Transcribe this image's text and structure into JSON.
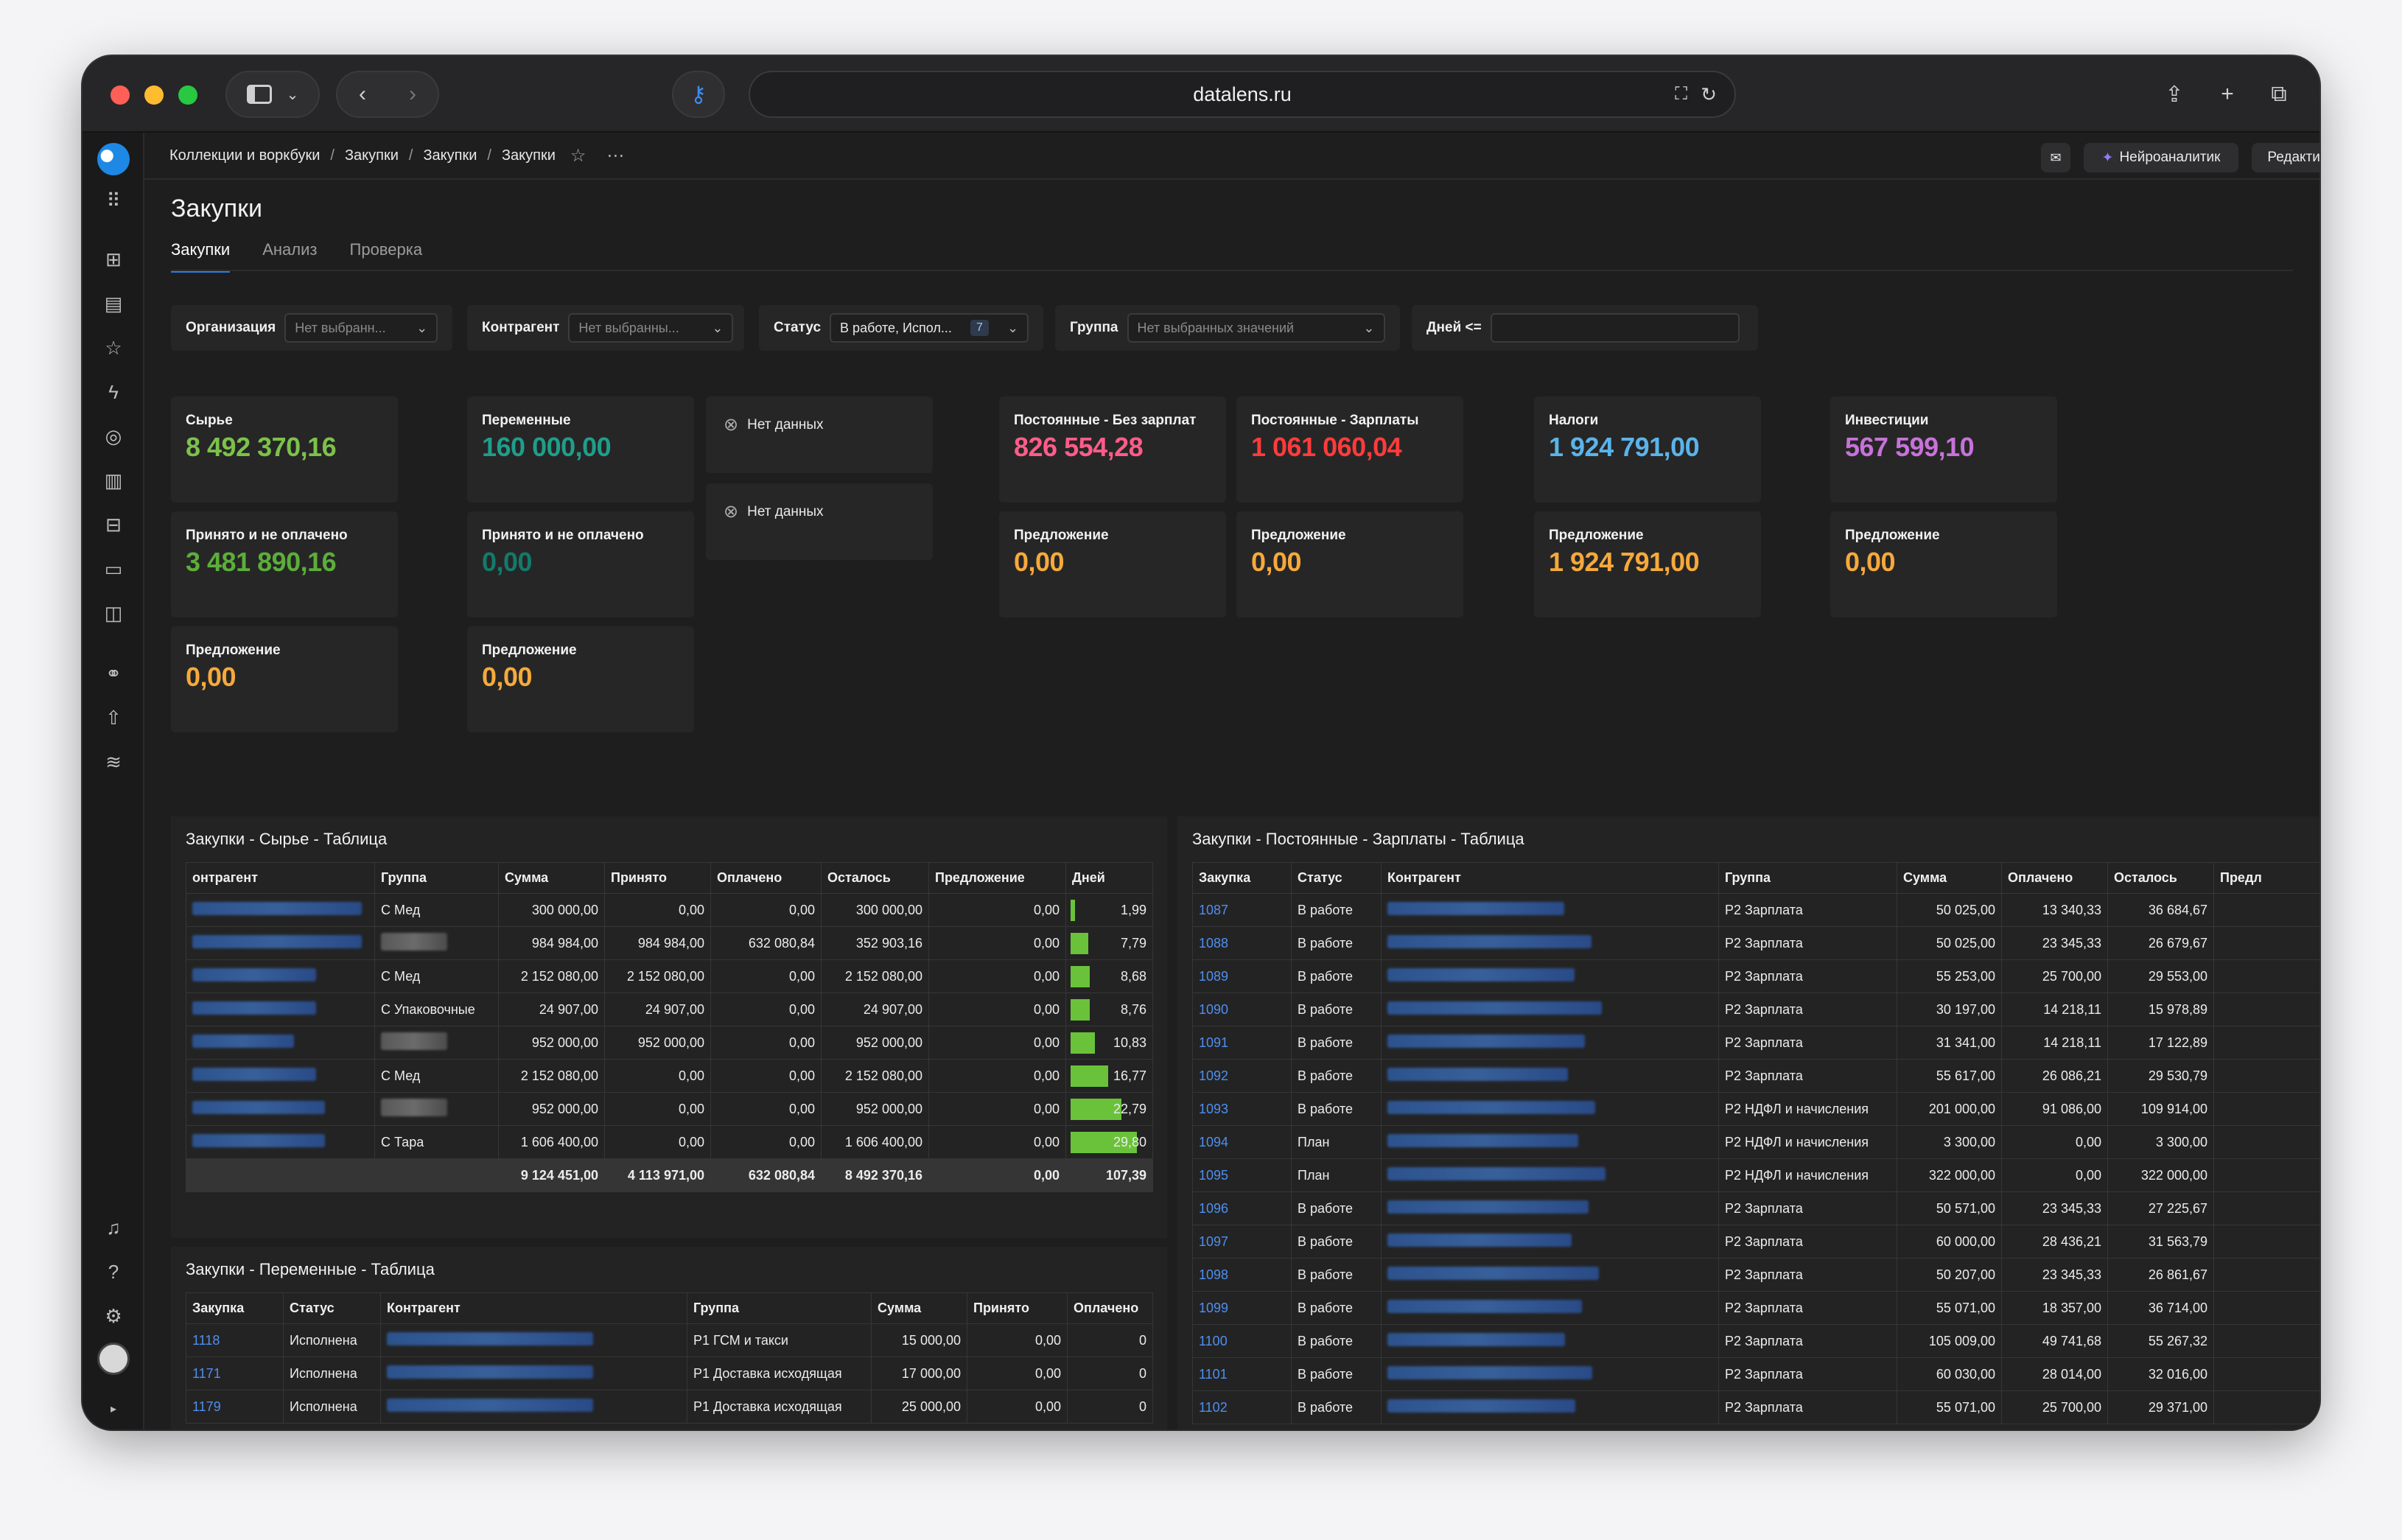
{
  "browser": {
    "url": "datalens.ru"
  },
  "breadcrumbs": [
    "Коллекции и воркбуки",
    "Закупки",
    "Закупки",
    "Закупки"
  ],
  "header_buttons": {
    "neuro": "Нейроаналитик",
    "edit": "Редактировать"
  },
  "page": {
    "title": "Закупки",
    "tabs": [
      "Закупки",
      "Анализ",
      "Проверка"
    ]
  },
  "filters": {
    "org": {
      "label": "Организация",
      "value": "Нет выбранн..."
    },
    "contractor": {
      "label": "Контрагент",
      "value": "Нет выбранны..."
    },
    "status": {
      "label": "Статус",
      "value": "В работе, Испол...",
      "count": "7"
    },
    "group": {
      "label": "Группа",
      "value": "Нет выбранных значений"
    },
    "days": {
      "label": "Дней <=",
      "value": ""
    }
  },
  "kpi": {
    "raw": {
      "label": "Сырье",
      "value": "8 492 370,16"
    },
    "raw_accepted": {
      "label": "Принято и не оплачено",
      "value": "3 481 890,16"
    },
    "raw_offer": {
      "label": "Предложение",
      "value": "0,00"
    },
    "var": {
      "label": "Переменные",
      "value": "160 000,00"
    },
    "var_accepted": {
      "label": "Принято и не оплачено",
      "value": "0,00"
    },
    "var_offer": {
      "label": "Предложение",
      "value": "0,00"
    },
    "nodata1": "Нет данных",
    "nodata2": "Нет данных",
    "const_nosal": {
      "label": "Постоянные - Без зарплат",
      "value": "826 554,28"
    },
    "const_nosal_offer": {
      "label": "Предложение",
      "value": "0,00"
    },
    "const_sal": {
      "label": "Постоянные - Зарплаты",
      "value": "1 061 060,04"
    },
    "const_sal_offer": {
      "label": "Предложение",
      "value": "0,00"
    },
    "taxes": {
      "label": "Налоги",
      "value": "1 924 791,00"
    },
    "taxes_offer": {
      "label": "Предложение",
      "value": "1 924 791,00"
    },
    "invest": {
      "label": "Инвестиции",
      "value": "567 599,10"
    },
    "invest_offer": {
      "label": "Предложение",
      "value": "0,00"
    }
  },
  "colors": {
    "green": "#7cc24a",
    "teal": "#1f9e8a",
    "pink": "#ff5c8a",
    "red": "#ff3b3b",
    "blue": "#5ab4ea",
    "purple": "#c772d9",
    "orange": "#f6a93b",
    "accent": "#2f7de1"
  },
  "raw_table": {
    "title": "Закупки - Сырье - Таблица",
    "headers": [
      "онтрагент",
      "Группа",
      "Сумма",
      "Принято",
      "Оплачено",
      "Осталось",
      "Предложение",
      "Дней"
    ],
    "rows": [
      [
        "",
        "С Мед",
        "300 000,00",
        "0,00",
        "0,00",
        "300 000,00",
        "0,00",
        "1,99"
      ],
      [
        "",
        "",
        "984 984,00",
        "984 984,00",
        "632 080,84",
        "352 903,16",
        "0,00",
        "7,79"
      ],
      [
        "",
        "С Мед",
        "2 152 080,00",
        "2 152 080,00",
        "0,00",
        "2 152 080,00",
        "0,00",
        "8,68"
      ],
      [
        "",
        "С Упаковочные",
        "24 907,00",
        "24 907,00",
        "0,00",
        "24 907,00",
        "0,00",
        "8,76"
      ],
      [
        "",
        "",
        "952 000,00",
        "952 000,00",
        "0,00",
        "952 000,00",
        "0,00",
        "10,83"
      ],
      [
        "",
        "С Мед",
        "2 152 080,00",
        "0,00",
        "0,00",
        "2 152 080,00",
        "0,00",
        "16,77"
      ],
      [
        "",
        "",
        "952 000,00",
        "0,00",
        "0,00",
        "952 000,00",
        "0,00",
        "22,79"
      ],
      [
        "",
        "С Тара",
        "1 606 400,00",
        "0,00",
        "0,00",
        "1 606 400,00",
        "0,00",
        "29,80"
      ]
    ],
    "days_values": [
      1.99,
      7.79,
      8.68,
      8.76,
      10.83,
      16.77,
      22.79,
      29.8
    ],
    "days_max": 29.8,
    "total": [
      "",
      "",
      "9 124 451,00",
      "4 113 971,00",
      "632 080,84",
      "8 492 370,16",
      "0,00",
      "107,39"
    ]
  },
  "var_table": {
    "title": "Закупки - Переменные - Таблица",
    "headers": [
      "Закупка",
      "Статус",
      "Контрагент",
      "Группа",
      "Сумма",
      "Принято",
      "Оплачено"
    ],
    "rows": [
      [
        "1118",
        "Исполнена",
        "",
        "Р1 ГСМ и такси",
        "15 000,00",
        "0,00",
        "0"
      ],
      [
        "1171",
        "Исполнена",
        "",
        "Р1 Доставка исходящая",
        "17 000,00",
        "0,00",
        "0"
      ],
      [
        "1179",
        "Исполнена",
        "",
        "Р1 Доставка исходящая",
        "25 000,00",
        "0,00",
        "0"
      ]
    ]
  },
  "sal_table": {
    "title": "Закупки - Постоянные - Зарплаты - Таблица",
    "headers": [
      "Закупка",
      "Статус",
      "Контрагент",
      "Группа",
      "Сумма",
      "Оплачено",
      "Осталось",
      "Предл"
    ],
    "rows": [
      [
        "1087",
        "В работе",
        "",
        "Р2 Зарплата",
        "50 025,00",
        "13 340,33",
        "36 684,67",
        ""
      ],
      [
        "1088",
        "В работе",
        "",
        "Р2 Зарплата",
        "50 025,00",
        "23 345,33",
        "26 679,67",
        ""
      ],
      [
        "1089",
        "В работе",
        "",
        "Р2 Зарплата",
        "55 253,00",
        "25 700,00",
        "29 553,00",
        ""
      ],
      [
        "1090",
        "В работе",
        "",
        "Р2 Зарплата",
        "30 197,00",
        "14 218,11",
        "15 978,89",
        ""
      ],
      [
        "1091",
        "В работе",
        "",
        "Р2 Зарплата",
        "31 341,00",
        "14 218,11",
        "17 122,89",
        ""
      ],
      [
        "1092",
        "В работе",
        "",
        "Р2 Зарплата",
        "55 617,00",
        "26 086,21",
        "29 530,79",
        ""
      ],
      [
        "1093",
        "В работе",
        "",
        "Р2 НДФЛ и начисления",
        "201 000,00",
        "91 086,00",
        "109 914,00",
        ""
      ],
      [
        "1094",
        "План",
        "",
        "Р2 НДФЛ и начисления",
        "3 300,00",
        "0,00",
        "3 300,00",
        ""
      ],
      [
        "1095",
        "План",
        "",
        "Р2 НДФЛ и начисления",
        "322 000,00",
        "0,00",
        "322 000,00",
        ""
      ],
      [
        "1096",
        "В работе",
        "",
        "Р2 Зарплата",
        "50 571,00",
        "23 345,33",
        "27 225,67",
        ""
      ],
      [
        "1097",
        "В работе",
        "",
        "Р2 Зарплата",
        "60 000,00",
        "28 436,21",
        "31 563,79",
        ""
      ],
      [
        "1098",
        "В работе",
        "",
        "Р2 Зарплата",
        "50 207,00",
        "23 345,33",
        "26 861,67",
        ""
      ],
      [
        "1099",
        "В работе",
        "",
        "Р2 Зарплата",
        "55 071,00",
        "18 357,00",
        "36 714,00",
        ""
      ],
      [
        "1100",
        "В работе",
        "",
        "Р2 Зарплата",
        "105 009,00",
        "49 741,68",
        "55 267,32",
        ""
      ],
      [
        "1101",
        "В работе",
        "",
        "Р2 Зарплата",
        "60 030,00",
        "28 014,00",
        "32 016,00",
        ""
      ],
      [
        "1102",
        "В работе",
        "",
        "Р2 Зарплата",
        "55 071,00",
        "25 700,00",
        "29 371,00",
        ""
      ]
    ]
  }
}
